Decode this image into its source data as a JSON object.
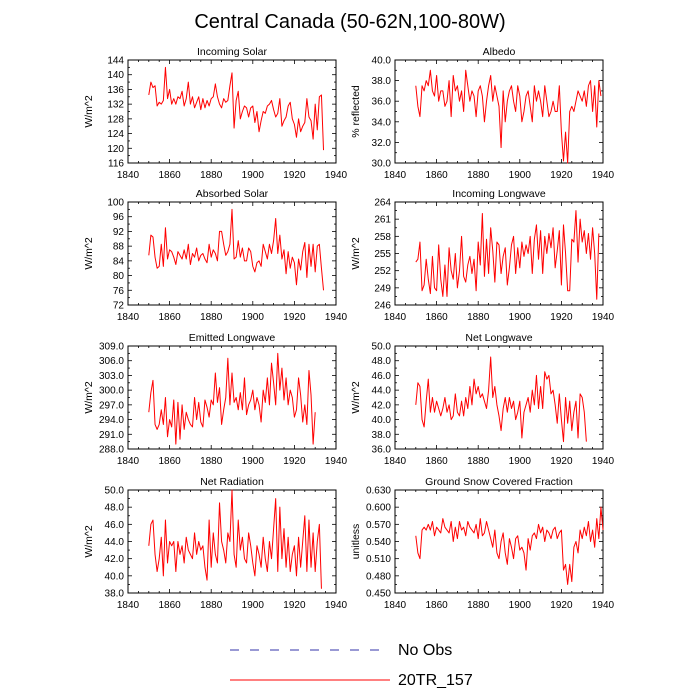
{
  "title": "Central Canada (50-62N,100-80W)",
  "legend": {
    "entries": [
      {
        "label": "No Obs",
        "color": "#3333aa",
        "style": "dashed"
      },
      {
        "label": "20TR_157",
        "color": "#ff0000",
        "style": "solid"
      }
    ]
  },
  "chart_data": [
    {
      "type": "line",
      "title": "Incoming Solar",
      "ylabel": "W/m^2",
      "xlim": [
        1840,
        1940
      ],
      "ylim": [
        116,
        144
      ],
      "xticks": [
        1840,
        1860,
        1880,
        1900,
        1920,
        1940
      ],
      "yticks": [
        116,
        120,
        124,
        128,
        132,
        136,
        140,
        144
      ],
      "ytick_labels": [
        "116",
        "120",
        "124",
        "128",
        "132",
        "136",
        "140",
        "144"
      ],
      "x_start": 1850,
      "series": [
        {
          "name": "20TR_157",
          "values": [
            134.5,
            138.0,
            136.5,
            137.0,
            131.5,
            132.5,
            132.0,
            133.0,
            142.0,
            133.5,
            136.0,
            132.0,
            133.5,
            132.0,
            134.0,
            133.5,
            135.5,
            131.5,
            133.5,
            138.0,
            132.0,
            134.0,
            131.0,
            132.5,
            134.0,
            130.5,
            133.5,
            131.0,
            133.0,
            131.5,
            133.5,
            134.0,
            137.5,
            134.0,
            132.0,
            131.0,
            133.5,
            132.5,
            133.0,
            137.0,
            140.5,
            125.5,
            133.0,
            135.5,
            128.0,
            130.0,
            131.5,
            131.0,
            128.5,
            131.0,
            131.5,
            127.0,
            130.0,
            124.5,
            127.5,
            130.0,
            129.5,
            131.5,
            132.0,
            133.0,
            130.5,
            128.5,
            129.5,
            133.5,
            126.0,
            127.5,
            128.5,
            131.5,
            132.5,
            128.0,
            126.5,
            123.0,
            128.0,
            124.5,
            126.0,
            127.0,
            133.5,
            128.5,
            127.5,
            122.5,
            132.0,
            125.0,
            134.0,
            134.5,
            119.5
          ]
        }
      ]
    },
    {
      "type": "line",
      "title": "Albedo",
      "ylabel": "% reflected",
      "xlim": [
        1840,
        1940
      ],
      "ylim": [
        30,
        40
      ],
      "xticks": [
        1840,
        1860,
        1880,
        1900,
        1920,
        1940
      ],
      "yticks": [
        30,
        32,
        34,
        36,
        38,
        40
      ],
      "ytick_labels": [
        "30.0",
        "32.0",
        "34.0",
        "36.0",
        "38.0",
        "40.0"
      ],
      "x_start": 1850,
      "series": [
        {
          "name": "20TR_157",
          "values": [
            37.5,
            35.5,
            34.5,
            37.5,
            37.0,
            38.0,
            37.5,
            39.0,
            37.0,
            36.5,
            38.5,
            36.0,
            37.0,
            37.0,
            35.5,
            36.0,
            38.0,
            34.5,
            38.5,
            37.0,
            37.5,
            36.0,
            37.0,
            35.0,
            39.0,
            37.5,
            36.0,
            37.0,
            36.5,
            34.5,
            37.0,
            37.5,
            36.5,
            34.0,
            36.0,
            37.5,
            38.5,
            36.0,
            37.5,
            36.5,
            35.5,
            31.5,
            37.0,
            34.0,
            36.0,
            37.0,
            37.5,
            36.0,
            35.0,
            37.5,
            36.5,
            34.0,
            35.0,
            36.5,
            37.0,
            35.5,
            34.0,
            37.5,
            36.0,
            37.0,
            36.0,
            34.5,
            37.5,
            36.0,
            34.5,
            35.0,
            36.0,
            35.0,
            35.0,
            37.5,
            33.0,
            30.2,
            33.0,
            30.0,
            35.0,
            35.5,
            35.0,
            36.0,
            37.0,
            36.5,
            36.0,
            37.0,
            35.5,
            37.5,
            38.0,
            35.0,
            37.5,
            33.5,
            38.0,
            36.5
          ]
        }
      ]
    },
    {
      "type": "line",
      "title": "Absorbed Solar",
      "ylabel": "W/m^2",
      "xlim": [
        1840,
        1940
      ],
      "ylim": [
        72,
        100
      ],
      "xticks": [
        1840,
        1860,
        1880,
        1900,
        1920,
        1940
      ],
      "yticks": [
        72,
        76,
        80,
        84,
        88,
        92,
        96,
        100
      ],
      "ytick_labels": [
        "72",
        "76",
        "80",
        "84",
        "88",
        "92",
        "96",
        "100"
      ],
      "x_start": 1850,
      "series": [
        {
          "name": "20TR_157",
          "values": [
            85.5,
            91.0,
            90.5,
            85.0,
            82.0,
            82.5,
            88.5,
            82.5,
            93.0,
            84.5,
            87.0,
            86.5,
            85.0,
            83.0,
            86.5,
            85.5,
            84.5,
            87.0,
            84.5,
            88.5,
            83.0,
            86.0,
            85.0,
            87.5,
            84.0,
            85.5,
            86.0,
            84.5,
            83.5,
            88.5,
            85.0,
            87.0,
            86.0,
            84.0,
            92.0,
            92.0,
            88.5,
            85.5,
            86.5,
            88.5,
            98.0,
            84.5,
            85.0,
            89.5,
            85.0,
            87.5,
            84.0,
            84.0,
            87.5,
            86.5,
            82.5,
            81.0,
            83.5,
            84.0,
            82.5,
            88.5,
            86.5,
            84.5,
            88.5,
            86.0,
            89.5,
            95.5,
            86.0,
            91.0,
            84.5,
            87.0,
            80.5,
            86.5,
            82.0,
            85.0,
            83.5,
            77.5,
            84.5,
            81.5,
            86.5,
            89.0,
            79.5,
            88.5,
            82.5,
            88.5,
            81.0,
            88.0,
            88.5,
            82.0,
            76.0
          ]
        }
      ]
    },
    {
      "type": "line",
      "title": "Incoming Longwave",
      "ylabel": "W/m^2",
      "xlim": [
        1840,
        1940
      ],
      "ylim": [
        246,
        264
      ],
      "xticks": [
        1840,
        1860,
        1880,
        1900,
        1920,
        1940
      ],
      "yticks": [
        246,
        249,
        252,
        255,
        258,
        261,
        264
      ],
      "ytick_labels": [
        "246",
        "249",
        "252",
        "255",
        "258",
        "261",
        "264"
      ],
      "x_start": 1850,
      "series": [
        {
          "name": "20TR_157",
          "values": [
            253.5,
            254.0,
            257.0,
            248.5,
            249.5,
            254.0,
            250.5,
            248.0,
            254.5,
            249.0,
            248.5,
            256.5,
            250.5,
            247.5,
            253.0,
            247.5,
            256.0,
            252.0,
            250.5,
            255.0,
            249.0,
            252.0,
            258.0,
            251.0,
            250.0,
            253.0,
            254.5,
            251.5,
            254.0,
            248.5,
            257.0,
            253.0,
            262.0,
            251.0,
            257.5,
            251.5,
            259.5,
            255.5,
            250.0,
            257.0,
            256.5,
            251.5,
            254.5,
            256.0,
            249.5,
            252.5,
            256.5,
            258.0,
            251.5,
            256.0,
            252.5,
            257.0,
            254.5,
            256.5,
            255.0,
            258.0,
            251.5,
            257.5,
            260.0,
            254.0,
            259.0,
            251.5,
            258.0,
            255.0,
            258.5,
            256.0,
            259.5,
            252.5,
            255.5,
            259.0,
            249.5,
            260.0,
            255.0,
            248.5,
            248.5,
            257.5,
            257.0,
            262.5,
            253.5,
            261.0,
            257.0,
            259.0,
            255.0,
            258.5,
            254.0,
            259.5,
            255.0,
            247.0,
            258.5
          ]
        }
      ]
    },
    {
      "type": "line",
      "title": "Emitted Longwave",
      "ylabel": "W/m^2",
      "xlim": [
        1840,
        1940
      ],
      "ylim": [
        288,
        309
      ],
      "xticks": [
        1840,
        1860,
        1880,
        1900,
        1920,
        1940
      ],
      "yticks": [
        288,
        291,
        294,
        297,
        300,
        303,
        306,
        309
      ],
      "ytick_labels": [
        "288.0",
        "291.0",
        "294.0",
        "297.0",
        "300.0",
        "303.0",
        "306.0",
        "309.0"
      ],
      "x_start": 1850,
      "series": [
        {
          "name": "20TR_157",
          "values": [
            295.5,
            299.5,
            302.0,
            293.0,
            292.0,
            293.0,
            296.0,
            293.0,
            298.5,
            290.5,
            294.0,
            292.5,
            298.0,
            289.0,
            297.5,
            290.0,
            297.0,
            292.0,
            295.5,
            294.0,
            293.0,
            292.5,
            298.5,
            294.0,
            297.5,
            293.5,
            292.5,
            298.0,
            296.5,
            294.5,
            298.0,
            297.0,
            303.5,
            297.5,
            300.5,
            293.0,
            296.0,
            298.5,
            306.5,
            297.0,
            303.5,
            297.5,
            298.5,
            296.0,
            299.5,
            296.0,
            302.5,
            295.0,
            297.0,
            298.0,
            300.0,
            296.0,
            298.5,
            297.0,
            293.5,
            300.0,
            297.5,
            302.5,
            297.0,
            305.5,
            301.5,
            297.0,
            307.5,
            300.0,
            304.5,
            298.0,
            302.5,
            297.0,
            300.0,
            298.5,
            294.5,
            296.0,
            302.5,
            299.0,
            293.5,
            297.0,
            293.0,
            304.0,
            299.0,
            289.0,
            295.5
          ]
        }
      ]
    },
    {
      "type": "line",
      "title": "Net Longwave",
      "ylabel": "W/m^2",
      "xlim": [
        1840,
        1940
      ],
      "ylim": [
        36,
        50
      ],
      "xticks": [
        1840,
        1860,
        1880,
        1900,
        1920,
        1940
      ],
      "yticks": [
        36,
        38,
        40,
        42,
        44,
        46,
        48,
        50
      ],
      "ytick_labels": [
        "36.0",
        "38.0",
        "40.0",
        "42.0",
        "44.0",
        "46.0",
        "48.0",
        "50.0"
      ],
      "x_start": 1850,
      "series": [
        {
          "name": "20TR_157",
          "values": [
            42.0,
            45.0,
            44.5,
            40.0,
            39.0,
            42.5,
            45.5,
            41.0,
            43.0,
            41.0,
            42.5,
            41.5,
            40.5,
            41.5,
            43.0,
            41.0,
            42.0,
            40.0,
            40.5,
            43.5,
            41.0,
            40.5,
            42.5,
            40.5,
            43.0,
            41.5,
            44.5,
            42.0,
            45.5,
            43.5,
            44.5,
            43.0,
            43.5,
            42.5,
            41.5,
            44.0,
            48.5,
            43.0,
            44.5,
            42.0,
            40.5,
            38.5,
            41.5,
            43.0,
            41.0,
            43.0,
            41.5,
            42.5,
            40.0,
            41.0,
            42.5,
            37.5,
            41.0,
            42.0,
            43.0,
            41.0,
            44.0,
            42.0,
            46.0,
            41.5,
            44.5,
            41.5,
            46.5,
            45.5,
            46.0,
            43.5,
            44.0,
            42.0,
            39.5,
            43.5,
            40.0,
            37.0,
            43.0,
            39.5,
            42.5,
            38.5,
            41.0,
            42.5,
            37.5,
            43.5,
            43.0,
            41.0,
            37.0
          ]
        }
      ]
    },
    {
      "type": "line",
      "title": "Net Radiation",
      "ylabel": "W/m^2",
      "xlim": [
        1840,
        1940
      ],
      "ylim": [
        38,
        50
      ],
      "xticks": [
        1840,
        1860,
        1880,
        1900,
        1920,
        1940
      ],
      "yticks": [
        38,
        40,
        42,
        44,
        46,
        48,
        50
      ],
      "ytick_labels": [
        "38.0",
        "40.0",
        "42.0",
        "44.0",
        "46.0",
        "48.0",
        "50.0"
      ],
      "x_start": 1850,
      "series": [
        {
          "name": "20TR_157",
          "values": [
            43.5,
            46.0,
            46.5,
            42.5,
            40.5,
            42.0,
            44.5,
            40.0,
            46.5,
            41.5,
            44.0,
            43.5,
            44.0,
            40.5,
            44.0,
            42.5,
            43.5,
            41.5,
            44.5,
            43.0,
            42.5,
            42.0,
            45.0,
            42.5,
            44.0,
            43.0,
            43.5,
            41.0,
            39.5,
            46.5,
            41.0,
            45.0,
            42.5,
            41.5,
            48.5,
            44.0,
            43.0,
            41.5,
            45.0,
            44.0,
            50.0,
            42.5,
            41.0,
            46.5,
            43.0,
            44.5,
            42.0,
            41.5,
            45.0,
            43.5,
            41.5,
            40.0,
            43.5,
            42.5,
            41.0,
            44.5,
            42.0,
            40.5,
            44.0,
            42.0,
            45.5,
            49.0,
            40.5,
            48.0,
            42.0,
            45.5,
            41.0,
            44.5,
            40.5,
            42.5,
            43.5,
            40.0,
            44.5,
            41.0,
            44.0,
            47.0,
            40.5,
            46.5,
            41.0,
            45.0,
            40.5,
            44.0,
            46.0,
            38.5
          ]
        }
      ]
    },
    {
      "type": "line",
      "title": "Ground Snow Covered Fraction",
      "ylabel": "unitless",
      "xlim": [
        1840,
        1940
      ],
      "ylim": [
        0.45,
        0.63
      ],
      "xticks": [
        1840,
        1860,
        1880,
        1900,
        1920,
        1940
      ],
      "yticks": [
        0.45,
        0.48,
        0.51,
        0.54,
        0.57,
        0.6,
        0.63
      ],
      "ytick_labels": [
        "0.450",
        "0.480",
        "0.510",
        "0.540",
        "0.570",
        "0.600",
        "0.630"
      ],
      "x_start": 1850,
      "series": [
        {
          "name": "20TR_157",
          "values": [
            0.55,
            0.52,
            0.51,
            0.56,
            0.565,
            0.56,
            0.57,
            0.56,
            0.575,
            0.55,
            0.565,
            0.56,
            0.555,
            0.58,
            0.565,
            0.56,
            0.555,
            0.575,
            0.54,
            0.565,
            0.545,
            0.575,
            0.56,
            0.565,
            0.55,
            0.575,
            0.565,
            0.56,
            0.555,
            0.57,
            0.545,
            0.58,
            0.55,
            0.555,
            0.575,
            0.56,
            0.545,
            0.53,
            0.56,
            0.52,
            0.51,
            0.54,
            0.555,
            0.52,
            0.5,
            0.545,
            0.53,
            0.51,
            0.545,
            0.55,
            0.525,
            0.53,
            0.52,
            0.49,
            0.545,
            0.525,
            0.55,
            0.555,
            0.545,
            0.57,
            0.555,
            0.565,
            0.54,
            0.56,
            0.555,
            0.545,
            0.56,
            0.565,
            0.545,
            0.555,
            0.56,
            0.49,
            0.5,
            0.465,
            0.5,
            0.47,
            0.53,
            0.54,
            0.52,
            0.56,
            0.545,
            0.565,
            0.55,
            0.575,
            0.54,
            0.56,
            0.53,
            0.58,
            0.545,
            0.6,
            0.56
          ]
        }
      ]
    }
  ]
}
